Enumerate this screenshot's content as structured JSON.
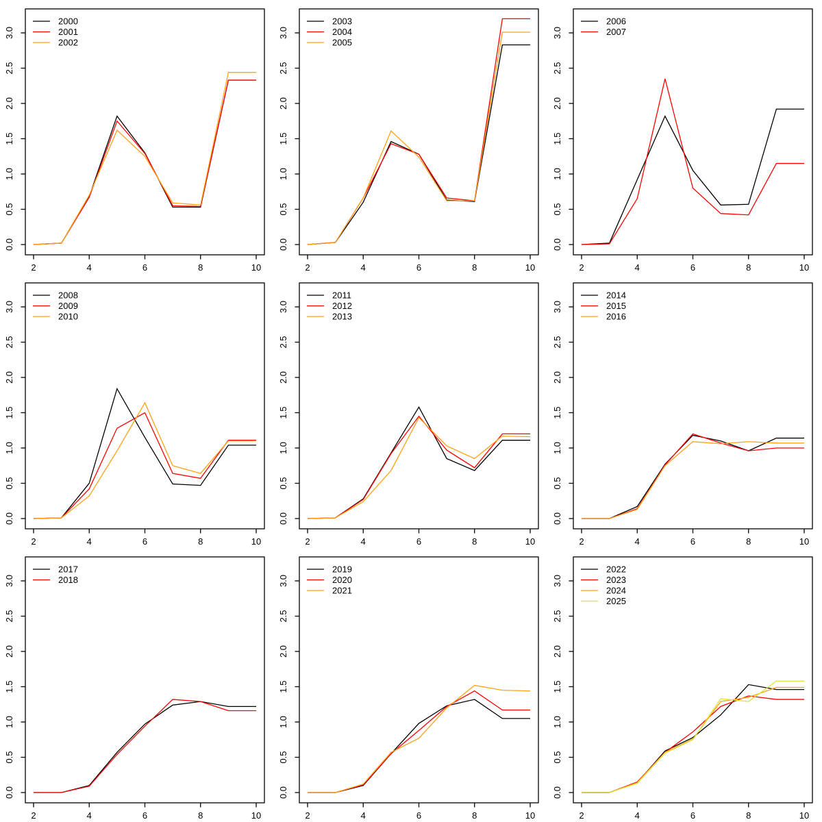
{
  "figure": {
    "background": "#ffffff",
    "rows": 3,
    "cols": 3,
    "panel_size": 400
  },
  "axes": {
    "xlim": [
      2,
      10
    ],
    "ylim": [
      0,
      3
    ],
    "x_ticks": [
      2,
      4,
      6,
      8,
      10
    ],
    "x_tick_labels": [
      "2",
      "4",
      "6",
      "8",
      "10"
    ],
    "y_ticks": [
      0,
      0.5,
      1,
      1.5,
      2,
      2.5,
      3
    ],
    "y_tick_labels": [
      "0.0",
      "0.5",
      "1.0",
      "1.5",
      "2.0",
      "2.5",
      "3.0"
    ],
    "xlabel": "",
    "ylabel": "",
    "grid": "off"
  },
  "palette": {
    "black": "#000000",
    "red": "#FF0000",
    "orange": "#FFA217",
    "yellow_green": "#DCE430"
  },
  "chart_data": [
    {
      "type": "line",
      "title": "",
      "legend_position": "topleft",
      "x": [
        2,
        3,
        4,
        5,
        6,
        7,
        8,
        9,
        10
      ],
      "series": [
        {
          "name": "2000",
          "color": "#000000",
          "values": [
            0.0,
            0.02,
            0.68,
            1.82,
            1.3,
            0.53,
            0.53,
            2.33,
            2.33
          ]
        },
        {
          "name": "2001",
          "color": "#FF0000",
          "values": [
            0.0,
            0.02,
            0.67,
            1.75,
            1.29,
            0.55,
            0.54,
            2.33,
            2.33
          ]
        },
        {
          "name": "2002",
          "color": "#FFA217",
          "values": [
            0.0,
            0.02,
            0.7,
            1.62,
            1.25,
            0.59,
            0.56,
            2.44,
            2.44
          ]
        }
      ]
    },
    {
      "type": "line",
      "title": "",
      "legend_position": "topleft",
      "x": [
        2,
        3,
        4,
        5,
        6,
        7,
        8,
        9,
        10
      ],
      "series": [
        {
          "name": "2003",
          "color": "#000000",
          "values": [
            0.0,
            0.03,
            0.6,
            1.46,
            1.28,
            0.63,
            0.61,
            2.83,
            2.83
          ]
        },
        {
          "name": "2004",
          "color": "#FF0000",
          "values": [
            0.0,
            0.03,
            0.66,
            1.43,
            1.28,
            0.66,
            0.62,
            3.2,
            3.2
          ]
        },
        {
          "name": "2005",
          "color": "#FFA217",
          "values": [
            0.0,
            0.03,
            0.66,
            1.61,
            1.24,
            0.62,
            0.62,
            3.01,
            3.01
          ]
        }
      ]
    },
    {
      "type": "line",
      "title": "",
      "legend_position": "topleft",
      "x": [
        2,
        3,
        4,
        5,
        6,
        7,
        8,
        9,
        10
      ],
      "series": [
        {
          "name": "2006",
          "color": "#000000",
          "values": [
            0.0,
            0.02,
            0.92,
            1.82,
            1.05,
            0.56,
            0.57,
            1.92,
            1.92
          ]
        },
        {
          "name": "2007",
          "color": "#FF0000",
          "values": [
            0.0,
            0.01,
            0.65,
            2.35,
            0.8,
            0.44,
            0.42,
            1.15,
            1.15
          ]
        }
      ]
    },
    {
      "type": "line",
      "title": "",
      "legend_position": "topleft",
      "x": [
        2,
        3,
        4,
        5,
        6,
        7,
        8,
        9,
        10
      ],
      "series": [
        {
          "name": "2008",
          "color": "#000000",
          "values": [
            0.0,
            0.01,
            0.5,
            1.84,
            1.15,
            0.49,
            0.47,
            1.04,
            1.04
          ]
        },
        {
          "name": "2009",
          "color": "#FF0000",
          "values": [
            0.0,
            0.01,
            0.42,
            1.28,
            1.5,
            0.64,
            0.57,
            1.11,
            1.11
          ]
        },
        {
          "name": "2010",
          "color": "#FFA217",
          "values": [
            0.0,
            0.01,
            0.32,
            0.96,
            1.64,
            0.75,
            0.64,
            1.1,
            1.1
          ]
        }
      ]
    },
    {
      "type": "line",
      "title": "",
      "legend_position": "topleft",
      "x": [
        2,
        3,
        4,
        5,
        6,
        7,
        8,
        9,
        10
      ],
      "series": [
        {
          "name": "2011",
          "color": "#000000",
          "values": [
            0.0,
            0.01,
            0.28,
            0.93,
            1.58,
            0.85,
            0.68,
            1.11,
            1.11
          ]
        },
        {
          "name": "2012",
          "color": "#FF0000",
          "values": [
            0.0,
            0.01,
            0.27,
            0.92,
            1.45,
            0.97,
            0.72,
            1.2,
            1.2
          ]
        },
        {
          "name": "2013",
          "color": "#FFA217",
          "values": [
            0.0,
            0.01,
            0.24,
            0.68,
            1.43,
            1.03,
            0.85,
            1.17,
            1.16
          ]
        }
      ]
    },
    {
      "type": "line",
      "title": "",
      "legend_position": "topleft",
      "x": [
        2,
        3,
        4,
        5,
        6,
        7,
        8,
        9,
        10
      ],
      "series": [
        {
          "name": "2014",
          "color": "#000000",
          "values": [
            0.0,
            0.0,
            0.17,
            0.77,
            1.18,
            1.1,
            0.96,
            1.14,
            1.14
          ]
        },
        {
          "name": "2015",
          "color": "#FF0000",
          "values": [
            0.0,
            0.0,
            0.14,
            0.76,
            1.2,
            1.07,
            0.96,
            1.0,
            1.0
          ]
        },
        {
          "name": "2016",
          "color": "#FFA217",
          "values": [
            0.0,
            0.0,
            0.13,
            0.75,
            1.09,
            1.06,
            1.09,
            1.07,
            1.07
          ]
        }
      ]
    },
    {
      "type": "line",
      "title": "",
      "legend_position": "topleft",
      "x": [
        2,
        3,
        4,
        5,
        6,
        7,
        8,
        9,
        10
      ],
      "series": [
        {
          "name": "2017",
          "color": "#000000",
          "values": [
            0.0,
            0.0,
            0.1,
            0.57,
            0.97,
            1.24,
            1.29,
            1.22,
            1.22
          ]
        },
        {
          "name": "2018",
          "color": "#FF0000",
          "values": [
            0.0,
            0.0,
            0.09,
            0.54,
            0.94,
            1.32,
            1.29,
            1.16,
            1.16
          ]
        }
      ]
    },
    {
      "type": "line",
      "title": "",
      "legend_position": "topleft",
      "x": [
        2,
        3,
        4,
        5,
        6,
        7,
        8,
        9,
        10
      ],
      "series": [
        {
          "name": "2019",
          "color": "#000000",
          "values": [
            0.0,
            0.0,
            0.1,
            0.55,
            0.98,
            1.23,
            1.32,
            1.05,
            1.05
          ]
        },
        {
          "name": "2020",
          "color": "#FF0000",
          "values": [
            0.0,
            0.0,
            0.11,
            0.55,
            0.88,
            1.22,
            1.44,
            1.17,
            1.17
          ]
        },
        {
          "name": "2021",
          "color": "#FFA217",
          "values": [
            0.0,
            0.0,
            0.12,
            0.57,
            0.77,
            1.2,
            1.52,
            1.45,
            1.44
          ]
        }
      ]
    },
    {
      "type": "line",
      "title": "",
      "legend_position": "topleft",
      "x": [
        2,
        3,
        4,
        5,
        6,
        7,
        8,
        9,
        10
      ],
      "series": [
        {
          "name": "2022",
          "color": "#000000",
          "values": [
            0.0,
            0.0,
            0.14,
            0.59,
            0.78,
            1.1,
            1.53,
            1.46,
            1.46
          ]
        },
        {
          "name": "2023",
          "color": "#FF0000",
          "values": [
            0.0,
            0.0,
            0.15,
            0.57,
            0.86,
            1.22,
            1.37,
            1.32,
            1.32
          ]
        },
        {
          "name": "2024",
          "color": "#FFA217",
          "values": [
            0.0,
            0.0,
            0.14,
            0.57,
            0.76,
            1.29,
            1.35,
            1.49,
            1.49
          ]
        },
        {
          "name": "2025",
          "color": "#DCE430",
          "values": [
            0.0,
            0.0,
            0.13,
            0.56,
            0.75,
            1.33,
            1.29,
            1.58,
            1.58
          ]
        }
      ]
    }
  ]
}
